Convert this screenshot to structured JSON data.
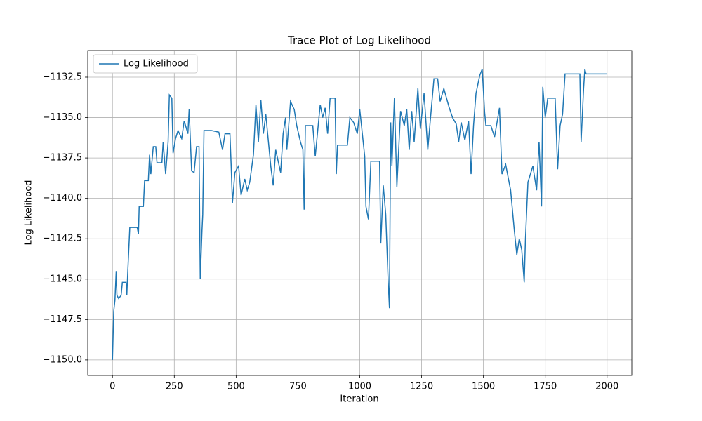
{
  "chart_data": {
    "type": "line",
    "title": "Trace Plot of Log Likelihood",
    "x_label": "Iteration",
    "y_label": "Log Likelihood",
    "x": [
      0,
      5,
      10,
      15,
      18,
      25,
      35,
      40,
      55,
      58,
      62,
      70,
      100,
      105,
      108,
      125,
      130,
      145,
      150,
      155,
      165,
      175,
      180,
      200,
      205,
      215,
      225,
      230,
      240,
      245,
      255,
      265,
      280,
      290,
      305,
      310,
      320,
      330,
      340,
      350,
      355,
      362,
      365,
      370,
      400,
      430,
      445,
      455,
      475,
      480,
      485,
      495,
      510,
      520,
      535,
      545,
      555,
      570,
      580,
      590,
      600,
      610,
      620,
      640,
      650,
      660,
      680,
      690,
      700,
      705,
      720,
      735,
      745,
      760,
      770,
      775,
      780,
      810,
      820,
      830,
      840,
      850,
      860,
      870,
      880,
      900,
      905,
      910,
      950,
      960,
      975,
      990,
      1000,
      1020,
      1025,
      1035,
      1045,
      1080,
      1085,
      1095,
      1105,
      1115,
      1120,
      1125,
      1130,
      1140,
      1150,
      1165,
      1180,
      1190,
      1200,
      1210,
      1220,
      1235,
      1245,
      1260,
      1275,
      1285,
      1300,
      1315,
      1325,
      1340,
      1360,
      1375,
      1390,
      1400,
      1410,
      1425,
      1440,
      1450,
      1460,
      1470,
      1485,
      1495,
      1505,
      1510,
      1530,
      1545,
      1555,
      1565,
      1575,
      1590,
      1610,
      1625,
      1635,
      1645,
      1655,
      1665,
      1670,
      1680,
      1690,
      1700,
      1715,
      1725,
      1735,
      1740,
      1750,
      1760,
      1790,
      1800,
      1810,
      1820,
      1830,
      1890,
      1895,
      1905,
      1910,
      1915,
      2000
    ],
    "series": [
      {
        "name": "Log Likelihood",
        "color": "#1f77b4",
        "values": [
          -1150,
          -1147,
          -1146.3,
          -1144.5,
          -1146,
          -1146.2,
          -1146,
          -1145.2,
          -1145.2,
          -1146,
          -1144.5,
          -1141.8,
          -1141.8,
          -1142.2,
          -1140.5,
          -1140.5,
          -1138.9,
          -1138.9,
          -1137.3,
          -1138.5,
          -1136.8,
          -1136.8,
          -1137.8,
          -1137.8,
          -1136.5,
          -1138.5,
          -1136.5,
          -1133.6,
          -1133.8,
          -1137.2,
          -1136.3,
          -1135.8,
          -1136.3,
          -1135.2,
          -1136,
          -1134.5,
          -1138.3,
          -1138.4,
          -1136.8,
          -1136.8,
          -1145,
          -1142,
          -1141,
          -1135.8,
          -1135.8,
          -1135.9,
          -1137,
          -1136,
          -1136,
          -1138,
          -1140.3,
          -1138.4,
          -1138,
          -1139.8,
          -1138.8,
          -1139.5,
          -1139,
          -1137.3,
          -1134.2,
          -1136.5,
          -1133.9,
          -1136,
          -1134.8,
          -1138,
          -1139.2,
          -1137,
          -1138.4,
          -1136,
          -1135,
          -1137,
          -1134,
          -1134.5,
          -1135.5,
          -1136.5,
          -1137,
          -1140.7,
          -1135.5,
          -1135.5,
          -1137.4,
          -1135.8,
          -1134.2,
          -1135,
          -1134.4,
          -1136,
          -1133.8,
          -1133.8,
          -1138.5,
          -1136.7,
          -1136.7,
          -1135,
          -1135.3,
          -1136,
          -1134.5,
          -1137.4,
          -1140.5,
          -1141.3,
          -1137.7,
          -1137.7,
          -1142.8,
          -1139.2,
          -1141,
          -1145.2,
          -1146.8,
          -1135.3,
          -1138,
          -1133.8,
          -1139.3,
          -1134.6,
          -1135.5,
          -1134.5,
          -1137,
          -1134.6,
          -1136.5,
          -1133.2,
          -1135.7,
          -1133.5,
          -1137,
          -1135.2,
          -1132.6,
          -1132.6,
          -1134,
          -1133.2,
          -1134.3,
          -1135,
          -1135.4,
          -1136.5,
          -1135.3,
          -1136.4,
          -1135.2,
          -1138.5,
          -1135.5,
          -1133.5,
          -1132.4,
          -1132,
          -1134.7,
          -1135.5,
          -1135.5,
          -1136.2,
          -1135.3,
          -1134.4,
          -1138.5,
          -1137.9,
          -1139.5,
          -1142,
          -1143.5,
          -1142.5,
          -1143.2,
          -1145.2,
          -1142.5,
          -1139,
          -1138.5,
          -1138,
          -1139.5,
          -1136.5,
          -1140.5,
          -1133.1,
          -1135,
          -1133.8,
          -1133.8,
          -1138.2,
          -1135.5,
          -1134.8,
          -1132.3,
          -1132.3,
          -1136.5,
          -1133.2,
          -1132,
          -1132.3,
          -1132.3
        ]
      }
    ],
    "xlim": [
      -100,
      2100
    ],
    "xticks": [
      0,
      250,
      500,
      750,
      1000,
      1250,
      1500,
      1750,
      2000
    ],
    "ylim": [
      -1150.96,
      -1130.85
    ],
    "yticks": [
      {
        "value": -1150,
        "label": "−1150.0"
      },
      {
        "value": -1147.5,
        "label": "−1147.5"
      },
      {
        "value": -1145,
        "label": "−1145.0"
      },
      {
        "value": -1142.5,
        "label": "−1142.5"
      },
      {
        "value": -1140,
        "label": "−1140.0"
      },
      {
        "value": -1137.5,
        "label": "−1137.5"
      },
      {
        "value": -1135,
        "label": "−1135.0"
      },
      {
        "value": -1132.5,
        "label": "−1132.5"
      }
    ],
    "grid": true,
    "legend": "upper left"
  }
}
